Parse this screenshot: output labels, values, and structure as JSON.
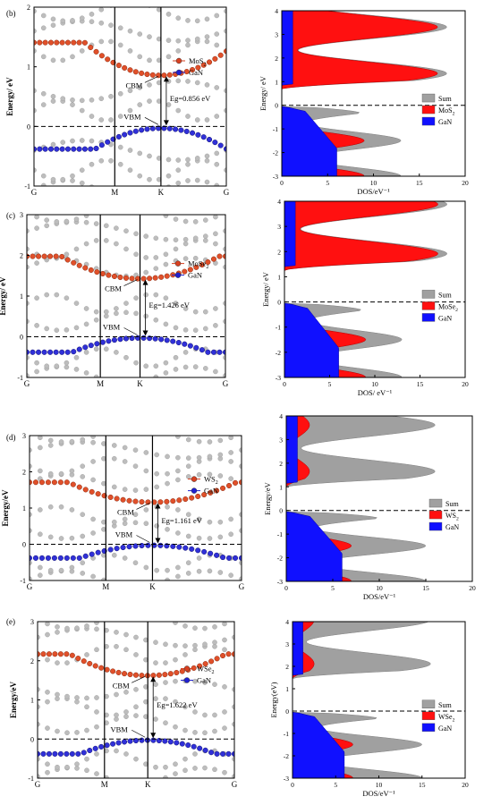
{
  "figure": {
    "panels": [
      {
        "panel_label": "(b)",
        "material": "MoS2",
        "material_base": "MoS",
        "material_sub": "2",
        "band_gap_label": "Eg=0.856 eV",
        "band_gap_value_eV": 0.856,
        "cbm_label": "CBM",
        "vbm_label": "VBM",
        "cbm_energy": 0.856,
        "vbm_energy": 0.0,
        "band_ylabel": "Energy/ eV",
        "band_ylim": [
          -1,
          2
        ],
        "band_yticks": [
          "-1",
          "0",
          "1",
          "2"
        ],
        "kpoints": [
          "G",
          "M",
          "K",
          "G"
        ],
        "kpoint_positions": [
          0,
          0.42,
          0.66,
          1.0
        ],
        "legend": [
          {
            "label": "MoS2",
            "color": "#d84020"
          },
          {
            "label": "GaN",
            "color": "#2020d0"
          }
        ],
        "dos_ylabel": "Energy/ eV",
        "dos_xlabel": "DOS/eV⁻¹",
        "dos_xlim": [
          0,
          20
        ],
        "dos_xticks": [
          "0",
          "5",
          "10",
          "15",
          "20"
        ],
        "dos_ylim": [
          -3,
          4
        ],
        "dos_yticks": [
          "-3",
          "-2",
          "-1",
          "0",
          "1",
          "2",
          "3",
          "4"
        ],
        "dos_legend": [
          {
            "label": "Sum",
            "color": "#a0a0a0"
          },
          {
            "label": "MoS2",
            "color": "#ff1010"
          },
          {
            "label": "GaN",
            "color": "#1010ff"
          }
        ]
      },
      {
        "panel_label": "(c)",
        "material": "MoSe2",
        "material_base": "MoSe",
        "material_sub": "2",
        "band_gap_label": "Eg=1.426 eV",
        "band_gap_value_eV": 1.426,
        "cbm_label": "CBM",
        "vbm_label": "VBM",
        "cbm_energy": 1.426,
        "vbm_energy": 0.0,
        "band_ylabel": "Energy/ eV",
        "band_ylim": [
          -1,
          3
        ],
        "band_yticks": [
          "-1",
          "0",
          "1",
          "2",
          "3"
        ],
        "kpoints": [
          "G",
          "M",
          "K",
          "G"
        ],
        "kpoint_positions": [
          0,
          0.37,
          0.57,
          1.0
        ],
        "legend": [
          {
            "label": "MoSe2",
            "color": "#d84020"
          },
          {
            "label": "GaN",
            "color": "#2020d0"
          }
        ],
        "dos_ylabel": "Energy/ eV",
        "dos_xlabel": "DOS/ eV⁻¹",
        "dos_xlim": [
          0,
          20
        ],
        "dos_xticks": [
          "0",
          "5",
          "10",
          "15",
          "20"
        ],
        "dos_ylim": [
          -3,
          4
        ],
        "dos_yticks": [
          "-3",
          "-2",
          "-1",
          "0",
          "1",
          "2",
          "3",
          "4"
        ],
        "dos_legend": [
          {
            "label": "Sum",
            "color": "#a0a0a0"
          },
          {
            "label": "MoSe2",
            "color": "#ff1010"
          },
          {
            "label": "GaN",
            "color": "#1010ff"
          }
        ]
      },
      {
        "panel_label": "(d)",
        "material": "WS2",
        "material_base": "WS",
        "material_sub": "2",
        "band_gap_label": "Eg=1.161 eV",
        "band_gap_value_eV": 1.161,
        "cbm_label": "CBM",
        "vbm_label": "VBM",
        "cbm_energy": 1.161,
        "vbm_energy": 0.0,
        "band_ylabel": "Energy/eV",
        "band_ylim": [
          -1,
          3
        ],
        "band_yticks": [
          "-1",
          "0",
          "1",
          "2",
          "3"
        ],
        "kpoints": [
          "G",
          "M",
          "K",
          "G"
        ],
        "kpoint_positions": [
          0,
          0.36,
          0.58,
          1.0
        ],
        "legend": [
          {
            "label": "WS2",
            "color": "#d84020"
          },
          {
            "label": "GaN",
            "color": "#2020d0"
          }
        ],
        "dos_ylabel": "Energy/eV",
        "dos_xlabel": "DOS/eV⁻¹",
        "dos_xlim": [
          0,
          20
        ],
        "dos_xticks": [
          "0",
          "5",
          "10",
          "15",
          "20"
        ],
        "dos_ylim": [
          -3,
          4
        ],
        "dos_yticks": [
          "-3",
          "-2",
          "-1",
          "0",
          "1",
          "2",
          "3",
          "4"
        ],
        "dos_legend": [
          {
            "label": "Sum",
            "color": "#a0a0a0"
          },
          {
            "label": "WS2",
            "color": "#ff1010"
          },
          {
            "label": "GaN",
            "color": "#1010ff"
          }
        ]
      },
      {
        "panel_label": "(e)",
        "material": "WSe2",
        "material_base": "WSe",
        "material_sub": "2",
        "band_gap_label": "Eg=1.622 eV",
        "band_gap_value_eV": 1.622,
        "cbm_label": "CBM",
        "vbm_label": "VBM",
        "cbm_energy": 1.622,
        "vbm_energy": 0.0,
        "band_ylabel": "Energy/eV",
        "band_ylim": [
          -1,
          3
        ],
        "band_yticks": [
          "-1",
          "0",
          "1",
          "2",
          "3"
        ],
        "kpoints": [
          "G",
          "M",
          "K",
          "G"
        ],
        "kpoint_positions": [
          0,
          0.34,
          0.56,
          1.0
        ],
        "legend": [
          {
            "label": "WSe2",
            "color": "#d84020"
          },
          {
            "label": "GaN",
            "color": "#2020d0"
          }
        ],
        "dos_ylabel": "Energy(eV)",
        "dos_xlabel": "DOS/eV⁻¹",
        "dos_xlim": [
          0,
          20
        ],
        "dos_xticks": [
          "0",
          "5",
          "10",
          "15",
          "20"
        ],
        "dos_ylim": [
          -3,
          4
        ],
        "dos_yticks": [
          "-3",
          "-2",
          "-1",
          "0",
          "1",
          "2",
          "3",
          "4"
        ],
        "dos_legend": [
          {
            "label": "Sum",
            "color": "#a0a0a0"
          },
          {
            "label": "WSe2",
            "color": "#ff1010"
          },
          {
            "label": "GaN",
            "color": "#1010ff"
          }
        ]
      }
    ]
  },
  "chart_data": [
    {
      "type": "scatter",
      "panel": "(b)",
      "title": "",
      "xlabel": "",
      "ylabel": "Energy/ eV",
      "x": [
        "G",
        "M",
        "K",
        "G"
      ],
      "ylim": [
        -1,
        2
      ],
      "series": [
        {
          "name": "MoS2",
          "cbm": 0.856
        },
        {
          "name": "GaN",
          "vbm": 0.0
        }
      ],
      "band_gap_eV": 0.856
    },
    {
      "type": "area",
      "panel": "(b)",
      "xlabel": "DOS/eV⁻¹",
      "ylabel": "Energy/ eV",
      "xlim": [
        0,
        20
      ],
      "ylim": [
        -3,
        4
      ],
      "series": [
        {
          "name": "Sum"
        },
        {
          "name": "MoS2"
        },
        {
          "name": "GaN"
        }
      ]
    },
    {
      "type": "scatter",
      "panel": "(c)",
      "title": "",
      "xlabel": "",
      "ylabel": "Energy/ eV",
      "x": [
        "G",
        "M",
        "K",
        "G"
      ],
      "ylim": [
        -1,
        3
      ],
      "series": [
        {
          "name": "MoSe2",
          "cbm": 1.426
        },
        {
          "name": "GaN",
          "vbm": 0.0
        }
      ],
      "band_gap_eV": 1.426
    },
    {
      "type": "area",
      "panel": "(c)",
      "xlabel": "DOS/ eV⁻¹",
      "ylabel": "Energy/ eV",
      "xlim": [
        0,
        20
      ],
      "ylim": [
        -3,
        4
      ],
      "series": [
        {
          "name": "Sum"
        },
        {
          "name": "MoSe2"
        },
        {
          "name": "GaN"
        }
      ]
    },
    {
      "type": "scatter",
      "panel": "(d)",
      "title": "",
      "xlabel": "",
      "ylabel": "Energy/eV",
      "x": [
        "G",
        "M",
        "K",
        "G"
      ],
      "ylim": [
        -1,
        3
      ],
      "series": [
        {
          "name": "WS2",
          "cbm": 1.161
        },
        {
          "name": "GaN",
          "vbm": 0.0
        }
      ],
      "band_gap_eV": 1.161
    },
    {
      "type": "area",
      "panel": "(d)",
      "xlabel": "DOS/eV⁻¹",
      "ylabel": "Energy/eV",
      "xlim": [
        0,
        20
      ],
      "ylim": [
        -3,
        4
      ],
      "series": [
        {
          "name": "Sum"
        },
        {
          "name": "WS2"
        },
        {
          "name": "GaN"
        }
      ]
    },
    {
      "type": "scatter",
      "panel": "(e)",
      "title": "",
      "xlabel": "",
      "ylabel": "Energy/eV",
      "x": [
        "G",
        "M",
        "K",
        "G"
      ],
      "ylim": [
        -1,
        3
      ],
      "series": [
        {
          "name": "WSe2",
          "cbm": 1.622
        },
        {
          "name": "GaN",
          "vbm": 0.0
        }
      ],
      "band_gap_eV": 1.622
    },
    {
      "type": "area",
      "panel": "(e)",
      "xlabel": "DOS/eV⁻¹",
      "ylabel": "Energy(eV)",
      "xlim": [
        0,
        20
      ],
      "ylim": [
        -3,
        4
      ],
      "series": [
        {
          "name": "Sum"
        },
        {
          "name": "WSe2"
        },
        {
          "name": "GaN"
        }
      ]
    }
  ]
}
